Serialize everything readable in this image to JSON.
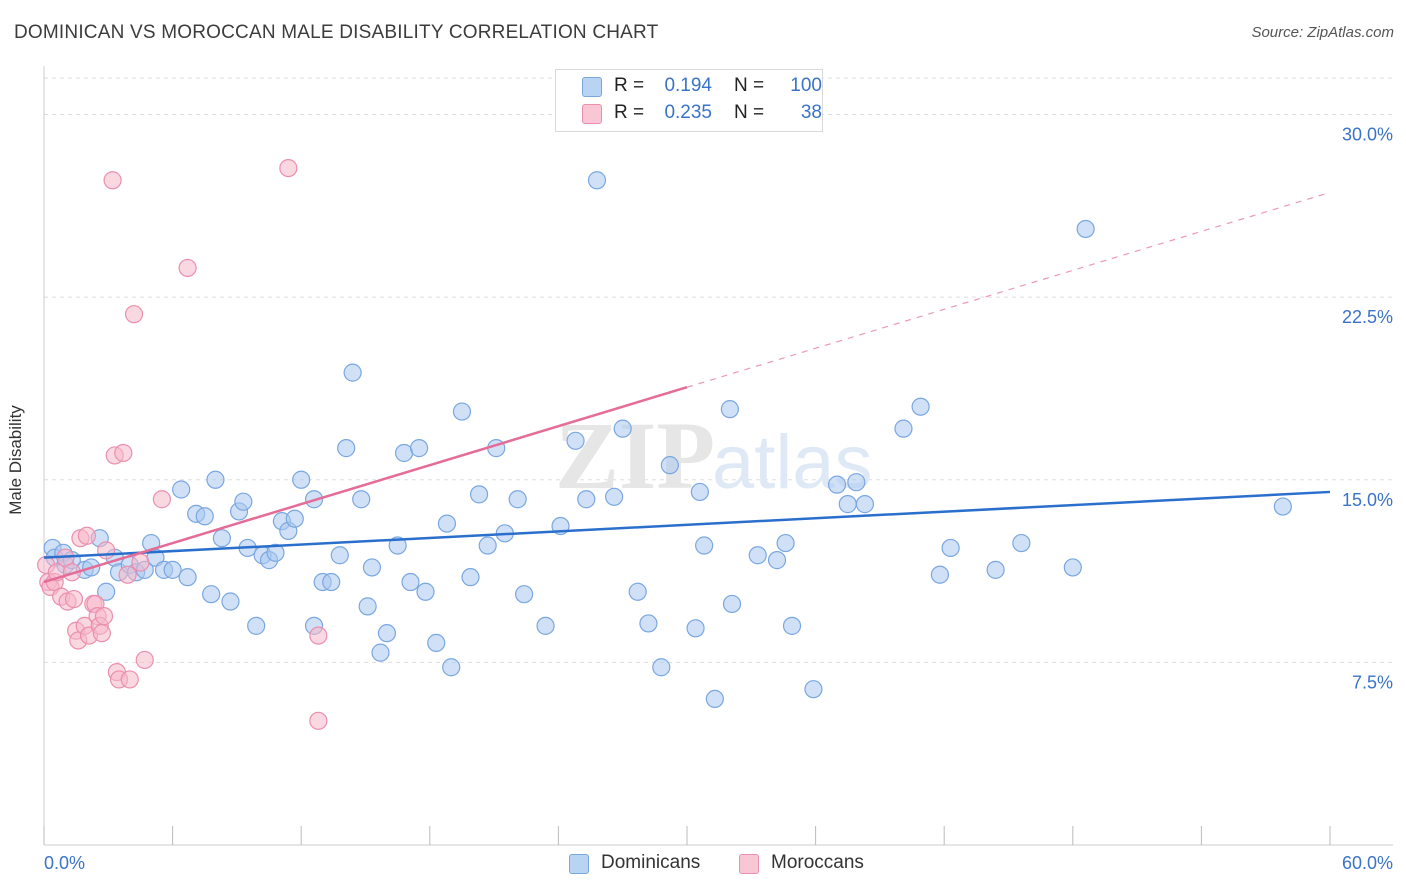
{
  "title": "DOMINICAN VS MOROCCAN MALE DISABILITY CORRELATION CHART",
  "source": "Source: ZipAtlas.com",
  "legend_top": [
    {
      "r_label": "R =",
      "r_value": "0.194",
      "n_label": "N =",
      "n_value": "100"
    },
    {
      "r_label": "R =",
      "r_value": "0.235",
      "n_label": "N =",
      "n_value": "38"
    }
  ],
  "legend_bottom": [
    {
      "label": "Dominicans"
    },
    {
      "label": "Moroccans"
    }
  ],
  "colors": {
    "blue_fill": "#aac8f0",
    "blue_stroke": "#7aa7e0",
    "blue_line": "#2b6fcc",
    "pink_fill": "#f6b8cb",
    "pink_stroke": "#eb8fae",
    "pink_line": "#e46c97",
    "tick_label": "#3a73c8",
    "grid": "#dddddd"
  },
  "chart_data": {
    "type": "scatter",
    "title": "DOMINICAN VS MOROCCAN MALE DISABILITY CORRELATION CHART",
    "xlabel": "",
    "ylabel": "Male Disability",
    "xlim": [
      0,
      60
    ],
    "ylim": [
      0,
      31.5
    ],
    "x_tick_labels": [
      {
        "value": 0,
        "label": "0.0%"
      },
      {
        "value": 60,
        "label": "60.0%"
      }
    ],
    "y_tick_labels": [
      {
        "value": 7.5,
        "label": "7.5%"
      },
      {
        "value": 15,
        "label": "15.0%"
      },
      {
        "value": 22.5,
        "label": "22.5%"
      },
      {
        "value": 30,
        "label": "30.0%"
      }
    ],
    "grid": "horizontal dashed",
    "legend": "top-center and bottom",
    "series": [
      {
        "name": "Dominicans",
        "color": "#aac8f0",
        "trend": {
          "x": [
            0,
            60
          ],
          "y": [
            11.8,
            14.5
          ],
          "style": "solid"
        },
        "points": [
          [
            0.4,
            12.2
          ],
          [
            0.5,
            11.8
          ],
          [
            0.9,
            12.0
          ],
          [
            1.0,
            11.5
          ],
          [
            1.3,
            11.7
          ],
          [
            1.9,
            11.3
          ],
          [
            2.2,
            11.4
          ],
          [
            2.6,
            12.6
          ],
          [
            2.9,
            10.4
          ],
          [
            3.3,
            11.8
          ],
          [
            3.5,
            11.2
          ],
          [
            4.0,
            11.5
          ],
          [
            4.3,
            11.2
          ],
          [
            4.7,
            11.3
          ],
          [
            5.0,
            12.4
          ],
          [
            5.2,
            11.8
          ],
          [
            5.6,
            11.3
          ],
          [
            6.0,
            11.3
          ],
          [
            6.4,
            14.6
          ],
          [
            6.7,
            11.0
          ],
          [
            7.1,
            13.6
          ],
          [
            7.5,
            13.5
          ],
          [
            7.8,
            10.3
          ],
          [
            8.0,
            15.0
          ],
          [
            8.3,
            12.6
          ],
          [
            8.7,
            10.0
          ],
          [
            9.1,
            13.7
          ],
          [
            9.3,
            14.1
          ],
          [
            9.5,
            12.2
          ],
          [
            9.9,
            9.0
          ],
          [
            10.2,
            11.9
          ],
          [
            10.5,
            11.7
          ],
          [
            10.8,
            12.0
          ],
          [
            11.1,
            13.3
          ],
          [
            11.4,
            12.9
          ],
          [
            11.7,
            13.4
          ],
          [
            12.0,
            15.0
          ],
          [
            12.6,
            14.2
          ],
          [
            12.6,
            9.0
          ],
          [
            13.0,
            10.8
          ],
          [
            13.4,
            10.8
          ],
          [
            13.8,
            11.9
          ],
          [
            14.1,
            16.3
          ],
          [
            14.4,
            19.4
          ],
          [
            14.8,
            14.2
          ],
          [
            15.1,
            9.8
          ],
          [
            15.3,
            11.4
          ],
          [
            15.7,
            7.9
          ],
          [
            16.0,
            8.7
          ],
          [
            16.5,
            12.3
          ],
          [
            16.8,
            16.1
          ],
          [
            17.1,
            10.8
          ],
          [
            17.5,
            16.3
          ],
          [
            17.8,
            10.4
          ],
          [
            18.3,
            8.3
          ],
          [
            18.8,
            13.2
          ],
          [
            19.0,
            7.3
          ],
          [
            19.5,
            17.8
          ],
          [
            19.9,
            11.0
          ],
          [
            20.3,
            14.4
          ],
          [
            20.7,
            12.3
          ],
          [
            21.1,
            16.3
          ],
          [
            21.5,
            12.8
          ],
          [
            22.1,
            14.2
          ],
          [
            22.4,
            10.3
          ],
          [
            23.4,
            9.0
          ],
          [
            24.1,
            13.1
          ],
          [
            24.8,
            16.6
          ],
          [
            25.3,
            14.2
          ],
          [
            25.8,
            27.3
          ],
          [
            26.6,
            14.3
          ],
          [
            27.0,
            17.1
          ],
          [
            27.7,
            10.4
          ],
          [
            28.2,
            9.1
          ],
          [
            28.8,
            7.3
          ],
          [
            29.2,
            15.6
          ],
          [
            30.4,
            8.9
          ],
          [
            30.6,
            14.5
          ],
          [
            30.8,
            12.3
          ],
          [
            31.3,
            6.0
          ],
          [
            32.0,
            17.9
          ],
          [
            32.1,
            9.9
          ],
          [
            33.3,
            11.9
          ],
          [
            34.2,
            11.7
          ],
          [
            34.6,
            12.4
          ],
          [
            34.9,
            9.0
          ],
          [
            35.9,
            6.4
          ],
          [
            37.0,
            14.8
          ],
          [
            37.5,
            14.0
          ],
          [
            37.9,
            14.9
          ],
          [
            38.3,
            14.0
          ],
          [
            40.1,
            17.1
          ],
          [
            40.9,
            18.0
          ],
          [
            41.8,
            11.1
          ],
          [
            42.3,
            12.2
          ],
          [
            44.4,
            11.3
          ],
          [
            45.6,
            12.4
          ],
          [
            48.0,
            11.4
          ],
          [
            48.6,
            25.3
          ],
          [
            57.8,
            13.9
          ]
        ]
      },
      {
        "name": "Moroccans",
        "color": "#f6b8cb",
        "trend": {
          "x": [
            0,
            30
          ],
          "y": [
            10.8,
            18.8
          ],
          "style": "solid",
          "extension": {
            "x": [
              30,
              60
            ],
            "y": [
              18.8,
              26.8
            ],
            "style": "dashed"
          }
        },
        "points": [
          [
            0.1,
            11.5
          ],
          [
            0.2,
            10.8
          ],
          [
            0.3,
            10.6
          ],
          [
            0.5,
            10.8
          ],
          [
            0.6,
            11.2
          ],
          [
            0.8,
            10.2
          ],
          [
            1.0,
            11.8
          ],
          [
            1.1,
            10.0
          ],
          [
            1.3,
            11.2
          ],
          [
            1.4,
            10.1
          ],
          [
            1.5,
            8.8
          ],
          [
            1.6,
            8.4
          ],
          [
            1.7,
            12.6
          ],
          [
            1.9,
            9.0
          ],
          [
            2.0,
            12.7
          ],
          [
            2.1,
            8.6
          ],
          [
            2.3,
            9.9
          ],
          [
            2.4,
            9.9
          ],
          [
            2.5,
            9.4
          ],
          [
            2.6,
            9.0
          ],
          [
            2.7,
            8.7
          ],
          [
            2.8,
            9.4
          ],
          [
            2.9,
            12.1
          ],
          [
            3.2,
            27.3
          ],
          [
            3.3,
            16.0
          ],
          [
            3.4,
            7.1
          ],
          [
            3.5,
            6.8
          ],
          [
            3.7,
            16.1
          ],
          [
            3.9,
            11.1
          ],
          [
            4.0,
            6.8
          ],
          [
            4.2,
            21.8
          ],
          [
            4.5,
            11.6
          ],
          [
            4.7,
            7.6
          ],
          [
            5.5,
            14.2
          ],
          [
            6.7,
            23.7
          ],
          [
            11.4,
            27.8
          ],
          [
            12.8,
            8.6
          ],
          [
            12.8,
            5.1
          ]
        ]
      }
    ]
  }
}
